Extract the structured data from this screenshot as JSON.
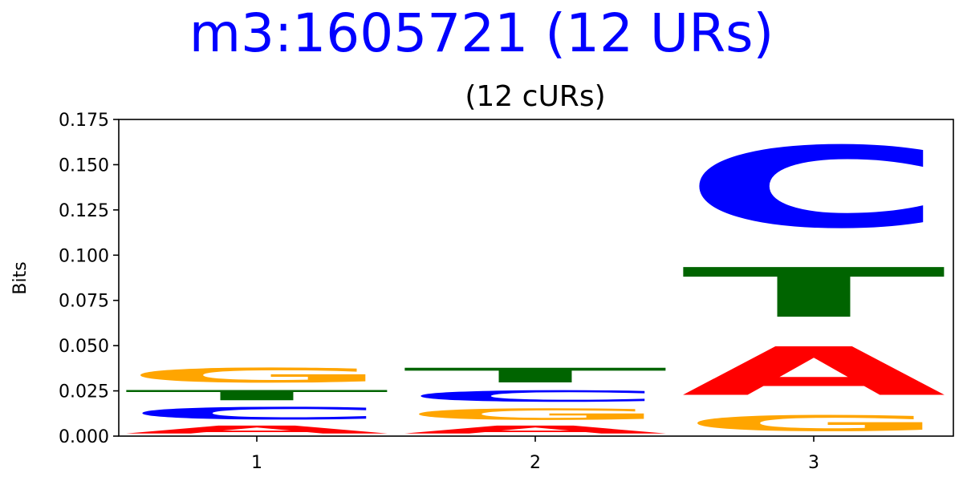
{
  "chart_data": {
    "type": "sequence-logo",
    "title": "m3:1605721 (12 URs)",
    "subtitle": "(12 cURs)",
    "xlabel": "",
    "ylabel": "Bits",
    "ylim": [
      0,
      0.175
    ],
    "y_ticks": [
      "0.000",
      "0.025",
      "0.050",
      "0.075",
      "0.100",
      "0.125",
      "0.150",
      "0.175"
    ],
    "x_ticks": [
      "1",
      "2",
      "3"
    ],
    "grid": false,
    "colors": {
      "A": "#ff0000",
      "C": "#0000ff",
      "G": "#ffa500",
      "T": "#006400"
    },
    "positions": [
      {
        "position": "1",
        "stack": [
          {
            "letter": "A",
            "height": 0.007
          },
          {
            "letter": "C",
            "height": 0.011
          },
          {
            "letter": "T",
            "height": 0.009
          },
          {
            "letter": "G",
            "height": 0.013
          }
        ]
      },
      {
        "position": "2",
        "stack": [
          {
            "letter": "A",
            "height": 0.007
          },
          {
            "letter": "G",
            "height": 0.01
          },
          {
            "letter": "C",
            "height": 0.01
          },
          {
            "letter": "T",
            "height": 0.013
          }
        ]
      },
      {
        "position": "3",
        "stack": [
          {
            "letter": "G",
            "height": 0.014
          },
          {
            "letter": "A",
            "height": 0.043
          },
          {
            "letter": "T",
            "height": 0.044
          },
          {
            "letter": "C",
            "height": 0.072
          }
        ]
      }
    ]
  }
}
